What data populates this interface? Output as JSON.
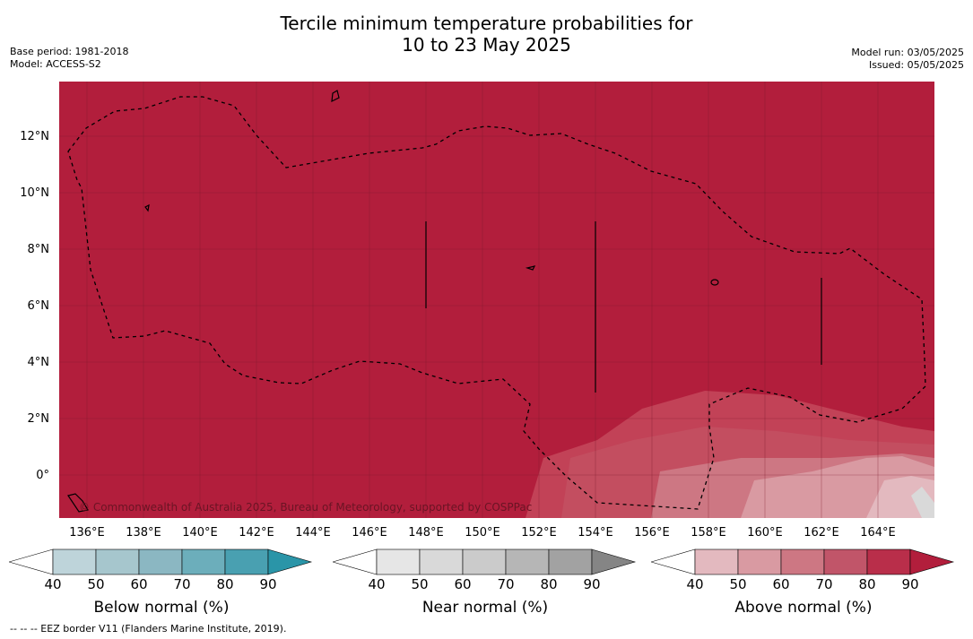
{
  "title": {
    "line1": "Tercile minimum temperature probabilities for",
    "line2": "10 to 23 May 2025"
  },
  "meta": {
    "base_period": "Base period: 1981-2018",
    "model": "Model: ACCESS-S2",
    "model_run": "Model run: 03/05/2025",
    "issued": "Issued: 05/05/2025"
  },
  "map": {
    "background_color": "#b21e3c",
    "copyright": "© Commonwealth of Australia 2025, Bureau of Meteorology, supported by COSPPac",
    "lat_labels": [
      "12°N",
      "10°N",
      "8°N",
      "6°N",
      "4°N",
      "2°N",
      "0°"
    ],
    "lon_labels": [
      "136°E",
      "138°E",
      "140°E",
      "142°E",
      "144°E",
      "146°E",
      "148°E",
      "150°E",
      "152°E",
      "154°E",
      "156°E",
      "158°E",
      "160°E",
      "162°E",
      "164°E"
    ]
  },
  "legends": [
    {
      "title": "Below normal (%)",
      "ticks": [
        "40",
        "50",
        "60",
        "70",
        "80",
        "90"
      ],
      "colors": [
        "#ffffff",
        "#bed4da",
        "#a6c6cd",
        "#8bb7c2",
        "#6caebb",
        "#49a0b1",
        "#2a95a8"
      ]
    },
    {
      "title": "Near normal (%)",
      "ticks": [
        "40",
        "50",
        "60",
        "70",
        "80",
        "90"
      ],
      "colors": [
        "#ffffff",
        "#e6e6e6",
        "#d9d9d9",
        "#cbcbcb",
        "#b6b6b6",
        "#a2a2a2",
        "#858585"
      ]
    },
    {
      "title": "Above normal (%)",
      "ticks": [
        "40",
        "50",
        "60",
        "70",
        "80",
        "90"
      ],
      "colors": [
        "#ffffff",
        "#e3b9bf",
        "#d99aa2",
        "#cd7783",
        "#c15569",
        "#b92e4a",
        "#b21e3c"
      ]
    }
  ],
  "footnote": "--  --  -- EEZ border V11 (Flanders Marine Institute, 2019)."
}
